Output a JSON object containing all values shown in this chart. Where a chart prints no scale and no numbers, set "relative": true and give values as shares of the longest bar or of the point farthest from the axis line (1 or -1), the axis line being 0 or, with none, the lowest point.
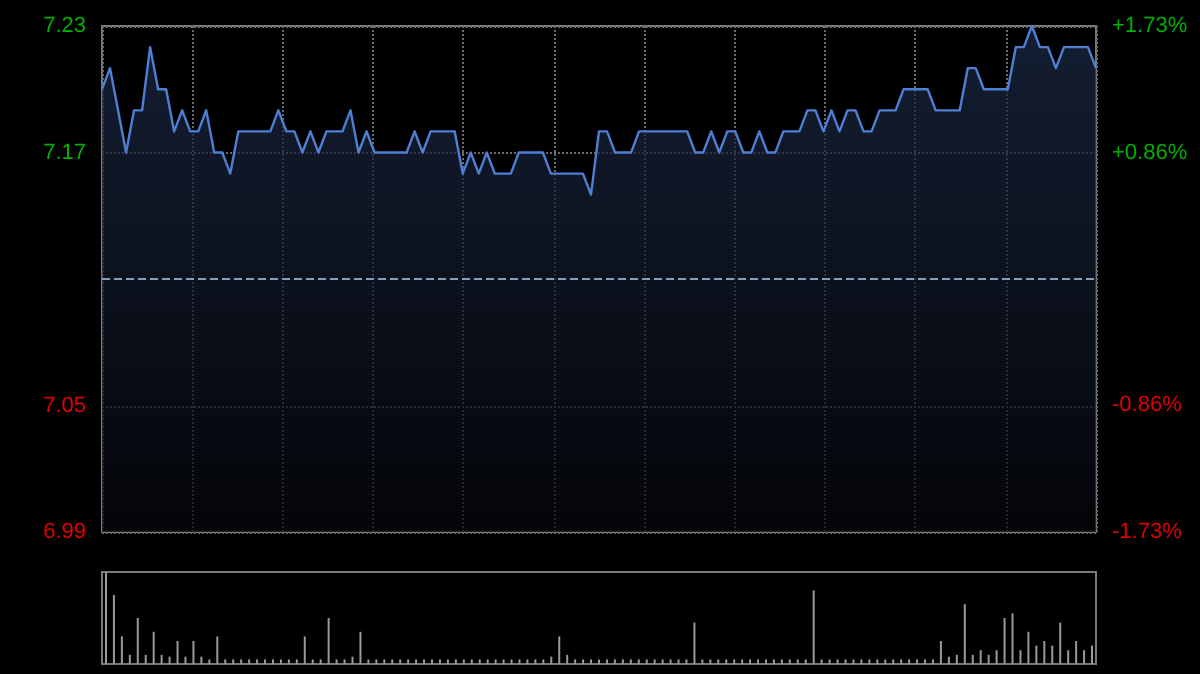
{
  "chart_data": [
    {
      "type": "area",
      "categories": [
        null,
        null,
        null,
        null,
        null,
        null,
        null,
        null,
        null,
        null,
        null,
        null,
        null,
        null,
        null,
        null,
        null,
        null,
        null,
        null,
        null,
        null,
        null,
        null,
        null,
        null,
        null,
        null,
        null,
        null,
        null,
        null,
        null,
        null,
        null,
        null,
        null,
        null,
        null,
        null,
        null,
        null,
        null,
        null,
        null,
        null,
        null,
        null,
        null,
        null,
        null,
        null,
        null,
        null,
        null,
        null,
        null,
        null,
        null,
        null,
        null,
        null,
        null,
        null,
        null,
        null,
        null,
        null,
        null,
        null,
        null,
        null,
        null,
        null,
        null,
        null,
        null,
        null,
        null,
        null,
        null,
        null,
        null,
        null,
        null,
        null,
        null,
        null,
        null,
        null,
        null,
        null,
        null,
        null,
        null,
        null,
        null,
        null,
        null,
        null,
        null,
        null,
        null,
        null,
        null,
        null,
        null,
        null,
        null,
        null,
        null,
        null,
        null,
        null,
        null,
        null,
        null,
        null,
        null,
        null,
        null,
        null,
        null,
        null,
        null
      ],
      "series": [
        {
          "color": "#4f7fd4",
          "values": [
            7.2,
            7.21,
            7.19,
            7.17,
            7.19,
            7.19,
            7.22,
            7.2,
            7.2,
            7.18,
            7.19,
            7.18,
            7.18,
            7.19,
            7.17,
            7.17,
            7.16,
            7.18,
            7.18,
            7.18,
            7.18,
            7.18,
            7.19,
            7.18,
            7.18,
            7.17,
            7.18,
            7.17,
            7.18,
            7.18,
            7.18,
            7.19,
            7.17,
            7.18,
            7.17,
            7.17,
            7.17,
            7.17,
            7.17,
            7.18,
            7.17,
            7.18,
            7.18,
            7.18,
            7.18,
            7.16,
            7.17,
            7.16,
            7.17,
            7.16,
            7.16,
            7.16,
            7.17,
            7.17,
            7.17,
            7.17,
            7.16,
            7.16,
            7.16,
            7.16,
            7.16,
            7.15,
            7.18,
            7.18,
            7.17,
            7.17,
            7.17,
            7.18,
            7.18,
            7.18,
            7.18,
            7.18,
            7.18,
            7.18,
            7.17,
            7.17,
            7.18,
            7.17,
            7.18,
            7.18,
            7.17,
            7.17,
            7.18,
            7.17,
            7.17,
            7.18,
            7.18,
            7.18,
            7.19,
            7.19,
            7.18,
            7.19,
            7.18,
            7.19,
            7.19,
            7.18,
            7.18,
            7.19,
            7.19,
            7.19,
            7.2,
            7.2,
            7.2,
            7.2,
            7.19,
            7.19,
            7.19,
            7.19,
            7.21,
            7.21,
            7.2,
            7.2,
            7.2,
            7.2,
            7.22,
            7.22,
            7.23,
            7.22,
            7.22,
            7.21,
            7.22,
            7.22,
            7.22,
            7.22,
            7.21
          ]
        }
      ],
      "ylim": [
        6.99,
        7.23
      ],
      "yticks": [
        6.99,
        7.05,
        7.17,
        7.23
      ],
      "y2lim": [
        -1.73,
        1.73
      ],
      "y2ticks": [
        {
          "value": -1.73,
          "label": "-1.73%"
        },
        {
          "value": -0.86,
          "label": "-0.86%"
        },
        {
          "value": 0.86,
          "label": "+0.86%"
        },
        {
          "value": 1.73,
          "label": "+1.73%"
        }
      ],
      "grid": true,
      "ref_lines": [
        {
          "axis": "y",
          "value": 7.11,
          "line_style": "dashed"
        }
      ]
    },
    {
      "type": "bar",
      "relative": true,
      "categories": [
        null,
        null,
        null,
        null,
        null,
        null,
        null,
        null,
        null,
        null,
        null,
        null,
        null,
        null,
        null,
        null,
        null,
        null,
        null,
        null,
        null,
        null,
        null,
        null,
        null,
        null,
        null,
        null,
        null,
        null,
        null,
        null,
        null,
        null,
        null,
        null,
        null,
        null,
        null,
        null,
        null,
        null,
        null,
        null,
        null,
        null,
        null,
        null,
        null,
        null,
        null,
        null,
        null,
        null,
        null,
        null,
        null,
        null,
        null,
        null,
        null,
        null,
        null,
        null,
        null,
        null,
        null,
        null,
        null,
        null,
        null,
        null,
        null,
        null,
        null,
        null,
        null,
        null,
        null,
        null,
        null,
        null,
        null,
        null,
        null,
        null,
        null,
        null,
        null,
        null,
        null,
        null,
        null,
        null,
        null,
        null,
        null,
        null,
        null,
        null,
        null,
        null,
        null,
        null,
        null,
        null,
        null,
        null,
        null,
        null,
        null,
        null,
        null,
        null,
        null,
        null,
        null,
        null,
        null,
        null,
        null,
        null,
        null,
        null,
        null
      ],
      "series": [
        {
          "color": "#9a9a9a",
          "values": [
            1.0,
            0.75,
            0.3,
            0.1,
            0.5,
            0.1,
            0.35,
            0.1,
            0.08,
            0.25,
            0.08,
            0.25,
            0.08,
            0.05,
            0.3,
            0.05,
            0.05,
            0.05,
            0.05,
            0.05,
            0.05,
            0.05,
            0.05,
            0.05,
            0.05,
            0.3,
            0.05,
            0.05,
            0.5,
            0.05,
            0.05,
            0.08,
            0.35,
            0.05,
            0.05,
            0.05,
            0.05,
            0.05,
            0.05,
            0.05,
            0.05,
            0.05,
            0.05,
            0.05,
            0.05,
            0.05,
            0.05,
            0.05,
            0.05,
            0.05,
            0.05,
            0.05,
            0.05,
            0.05,
            0.05,
            0.05,
            0.08,
            0.3,
            0.1,
            0.05,
            0.05,
            0.05,
            0.05,
            0.05,
            0.05,
            0.05,
            0.05,
            0.05,
            0.05,
            0.05,
            0.05,
            0.05,
            0.05,
            0.05,
            0.45,
            0.05,
            0.05,
            0.05,
            0.05,
            0.05,
            0.05,
            0.05,
            0.05,
            0.05,
            0.05,
            0.05,
            0.05,
            0.05,
            0.05,
            0.8,
            0.05,
            0.05,
            0.05,
            0.05,
            0.05,
            0.05,
            0.05,
            0.05,
            0.05,
            0.05,
            0.05,
            0.05,
            0.05,
            0.05,
            0.05,
            0.25,
            0.08,
            0.1,
            0.65,
            0.1,
            0.15,
            0.1,
            0.15,
            0.5,
            0.55,
            0.15,
            0.35,
            0.2,
            0.25,
            0.2,
            0.45,
            0.15,
            0.25,
            0.15,
            0.2
          ]
        }
      ]
    }
  ]
}
